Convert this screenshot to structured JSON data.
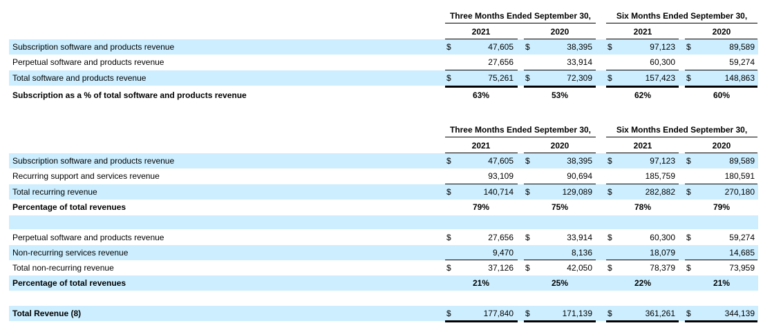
{
  "section1": {
    "header": {
      "three_months": "Three Months Ended September 30,",
      "six_months": "Six Months Ended September 30,",
      "years": [
        "2021",
        "2020",
        "2021",
        "2020"
      ]
    },
    "rows": [
      {
        "label": "Subscription software and products revenue",
        "dollar": true,
        "values": [
          "47,605",
          "38,395",
          "97,123",
          "89,589"
        ]
      },
      {
        "label": "Perpetual software and products revenue",
        "dollar": false,
        "values": [
          "27,656",
          "33,914",
          "60,300",
          "59,274"
        ]
      },
      {
        "label": "Total software and products revenue",
        "dollar": true,
        "values": [
          "75,261",
          "72,309",
          "157,423",
          "148,863"
        ]
      }
    ],
    "pct_row": {
      "label": "Subscription as a % of total software and products revenue",
      "values": [
        "63%",
        "53%",
        "62%",
        "60%"
      ]
    }
  },
  "section2": {
    "header": {
      "three_months": "Three Months Ended September 30,",
      "six_months": "Six Months Ended September 30,",
      "years": [
        "2021",
        "2020",
        "2021",
        "2020"
      ]
    },
    "rows": [
      {
        "label": "Subscription software and products revenue",
        "dollar": true,
        "values": [
          "47,605",
          "38,395",
          "97,123",
          "89,589"
        ]
      },
      {
        "label": "Recurring support and services revenue",
        "dollar": false,
        "values": [
          "93,109",
          "90,694",
          "185,759",
          "180,591"
        ]
      },
      {
        "label": "Total recurring revenue",
        "dollar": true,
        "values": [
          "140,714",
          "129,089",
          "282,882",
          "270,180"
        ]
      }
    ],
    "pct_row": {
      "label": "Percentage of total revenues",
      "values": [
        "79%",
        "75%",
        "78%",
        "79%"
      ]
    },
    "rows_b": [
      {
        "label": "Perpetual software and products revenue",
        "dollar": true,
        "values": [
          "27,656",
          "33,914",
          "60,300",
          "59,274"
        ]
      },
      {
        "label": "Non-recurring services revenue",
        "dollar": false,
        "values": [
          "9,470",
          "8,136",
          "18,079",
          "14,685"
        ]
      },
      {
        "label": "Total non-recurring revenue",
        "dollar": true,
        "values": [
          "37,126",
          "42,050",
          "78,379",
          "73,959"
        ]
      }
    ],
    "pct_row_b": {
      "label": "Percentage of total revenues",
      "values": [
        "21%",
        "25%",
        "22%",
        "21%"
      ]
    },
    "total_row": {
      "label": "Total Revenue (8)",
      "dollar": true,
      "values": [
        "177,840",
        "171,139",
        "361,261",
        "344,139"
      ]
    }
  },
  "currency_symbol": "$"
}
